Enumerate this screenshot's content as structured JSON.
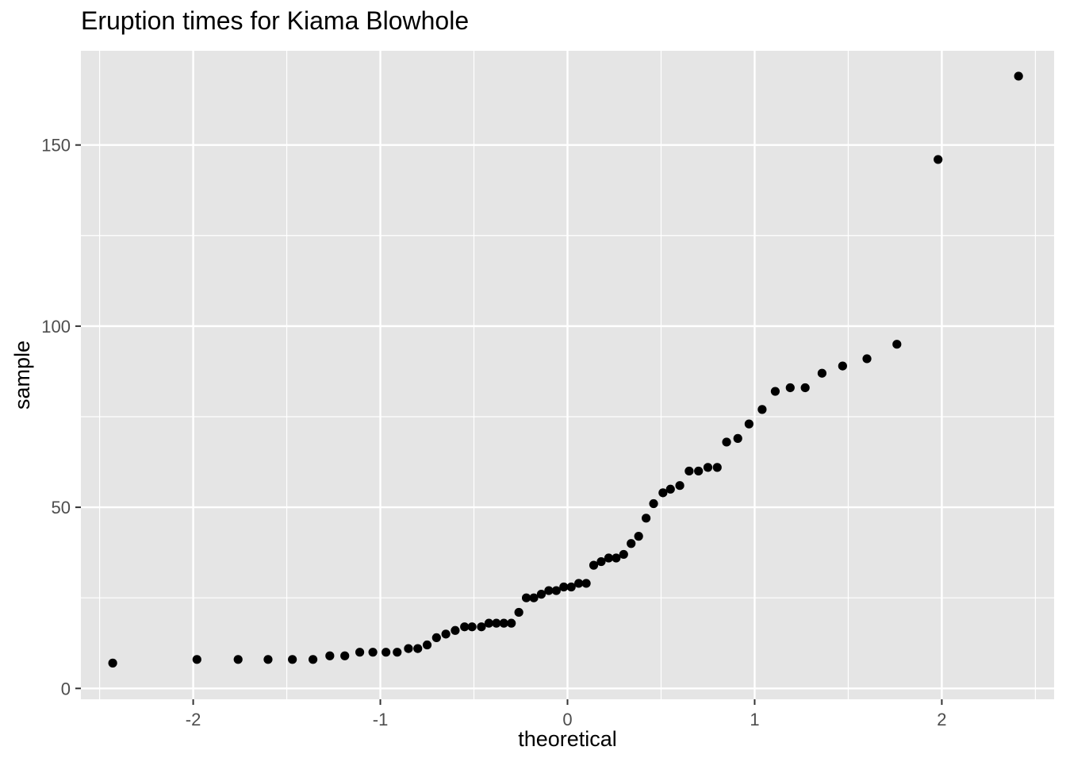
{
  "chart_data": {
    "type": "scatter",
    "title": "Eruption times for Kiama Blowhole",
    "xlabel": "theoretical",
    "ylabel": "sample",
    "xlim": [
      -2.6,
      2.6
    ],
    "ylim": [
      -3,
      176
    ],
    "x_major_ticks": [
      -2,
      -1,
      0,
      1,
      2
    ],
    "x_minor_ticks": [
      -2.5,
      -1.5,
      -0.5,
      0.5,
      1.5,
      2.5
    ],
    "y_major_ticks": [
      0,
      50,
      100,
      150
    ],
    "y_minor_ticks": [
      25,
      75,
      125
    ],
    "x_tick_labels": [
      "-2",
      "-1",
      "0",
      "1",
      "2"
    ],
    "y_tick_labels": [
      "0",
      "50",
      "100",
      "150"
    ],
    "grid": true,
    "point_color": "#000000",
    "panel_color": "#e5e5e5",
    "grid_color": "#ffffff",
    "points": [
      [
        -2.43,
        7
      ],
      [
        -1.98,
        8
      ],
      [
        -1.76,
        8
      ],
      [
        -1.6,
        8
      ],
      [
        -1.47,
        8
      ],
      [
        -1.36,
        8
      ],
      [
        -1.27,
        9
      ],
      [
        -1.19,
        9
      ],
      [
        -1.11,
        10
      ],
      [
        -1.04,
        10
      ],
      [
        -0.97,
        10
      ],
      [
        -0.91,
        10
      ],
      [
        -0.85,
        11
      ],
      [
        -0.8,
        11
      ],
      [
        -0.75,
        12
      ],
      [
        -0.7,
        14
      ],
      [
        -0.65,
        15
      ],
      [
        -0.6,
        16
      ],
      [
        -0.55,
        17
      ],
      [
        -0.51,
        17
      ],
      [
        -0.46,
        17
      ],
      [
        -0.42,
        18
      ],
      [
        -0.38,
        18
      ],
      [
        -0.34,
        18
      ],
      [
        -0.3,
        18
      ],
      [
        -0.26,
        21
      ],
      [
        -0.22,
        25
      ],
      [
        -0.18,
        25
      ],
      [
        -0.14,
        26
      ],
      [
        -0.1,
        27
      ],
      [
        -0.06,
        27
      ],
      [
        -0.02,
        28
      ],
      [
        0.02,
        28
      ],
      [
        0.06,
        29
      ],
      [
        0.1,
        29
      ],
      [
        0.14,
        34
      ],
      [
        0.18,
        35
      ],
      [
        0.22,
        36
      ],
      [
        0.26,
        36
      ],
      [
        0.3,
        37
      ],
      [
        0.34,
        40
      ],
      [
        0.38,
        42
      ],
      [
        0.42,
        47
      ],
      [
        0.46,
        51
      ],
      [
        0.51,
        54
      ],
      [
        0.55,
        55
      ],
      [
        0.6,
        56
      ],
      [
        0.65,
        60
      ],
      [
        0.7,
        60
      ],
      [
        0.75,
        61
      ],
      [
        0.8,
        61
      ],
      [
        0.85,
        68
      ],
      [
        0.91,
        69
      ],
      [
        0.97,
        73
      ],
      [
        1.04,
        77
      ],
      [
        1.11,
        82
      ],
      [
        1.19,
        83
      ],
      [
        1.27,
        83
      ],
      [
        1.36,
        87
      ],
      [
        1.47,
        89
      ],
      [
        1.6,
        91
      ],
      [
        1.76,
        95
      ],
      [
        1.98,
        146
      ],
      [
        2.41,
        169
      ]
    ]
  }
}
